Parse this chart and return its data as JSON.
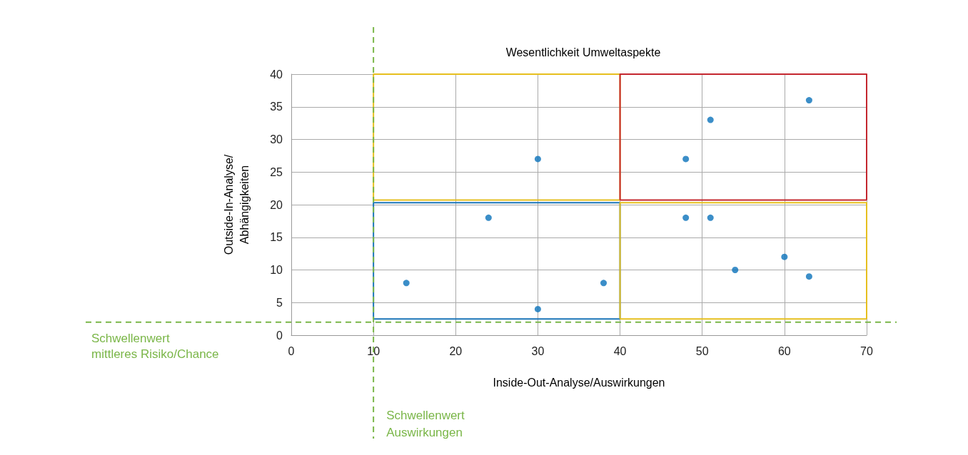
{
  "chart_data": {
    "type": "scatter",
    "title": "Wesentlichkeit Umweltaspekte",
    "xlabel": "Inside-Out-Analyse/Auswirkungen",
    "ylabel": "Outside-In-Analyse/\nAbhängigkeiten",
    "xlim": [
      0,
      70
    ],
    "xticks": [
      0,
      10,
      20,
      30,
      40,
      50,
      60,
      70
    ],
    "ylim": [
      0,
      40
    ],
    "yticks": [
      0,
      5,
      10,
      15,
      20,
      25,
      30,
      35,
      40
    ],
    "grid": true,
    "series": [
      {
        "type": "line",
        "color": "#e6bf1e",
        "x": [
          10,
          10,
          40,
          40
        ],
        "values": [
          20.7,
          40,
          40,
          20.7
        ]
      },
      {
        "type": "line",
        "color": "#e6bf1e",
        "x": [
          10,
          40
        ],
        "values": [
          20.7,
          20.7
        ]
      },
      {
        "type": "line",
        "color": "#c4262e",
        "x": [
          40,
          40,
          70,
          70
        ],
        "values": [
          20.7,
          40,
          40,
          20.7
        ]
      },
      {
        "type": "line",
        "color": "#c4262e",
        "x": [
          40,
          70
        ],
        "values": [
          20.7,
          20.7
        ]
      },
      {
        "type": "line",
        "color": "#1b75b8",
        "x": [
          10,
          10,
          40,
          40
        ],
        "values": [
          2.5,
          20.3,
          20.3,
          2.5
        ]
      },
      {
        "type": "line",
        "color": "#1b75b8",
        "x": [
          10,
          40
        ],
        "values": [
          2.5,
          2.5
        ]
      },
      {
        "type": "line",
        "color": "#e6bf1e",
        "x": [
          40,
          40,
          70,
          70
        ],
        "values": [
          2.5,
          20.3,
          20.3,
          2.5
        ]
      },
      {
        "type": "line",
        "color": "#e6bf1e",
        "x": [
          40,
          70
        ],
        "values": [
          2.5,
          2.5
        ]
      },
      {
        "marker": "circle",
        "color": "#0a72ba",
        "x": [
          14,
          24,
          30,
          30,
          38,
          48,
          51,
          63,
          48,
          51,
          54,
          60,
          63
        ],
        "values": [
          8,
          18,
          27,
          4,
          8,
          27,
          33,
          36,
          18,
          18,
          10,
          12,
          9
        ]
      }
    ],
    "ref_lines": [
      {
        "axis": "y",
        "value": 2,
        "label": "Schwellenwert mittleres Risiko/Chance",
        "color": "#7ab648",
        "line_style": "dashed"
      },
      {
        "axis": "x",
        "value": 10,
        "label": "Schwellenwert Auswirkungen",
        "color": "#7ab648",
        "line_style": "dashed"
      }
    ]
  }
}
